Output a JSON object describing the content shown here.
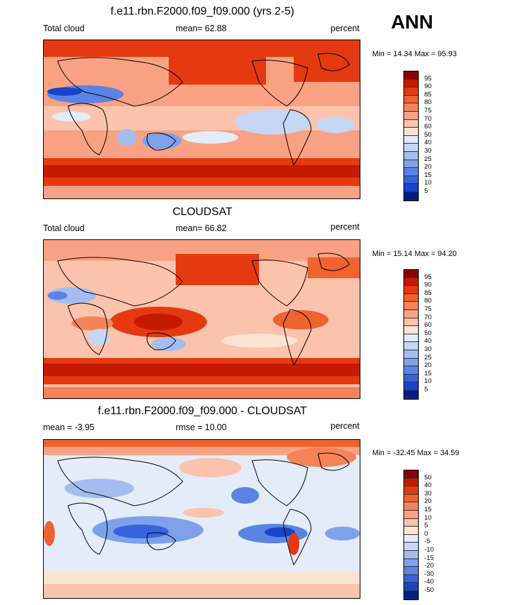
{
  "season": "ANN",
  "panels": [
    {
      "title": "f.e11.rbn.F2000.f09_f09.000 (yrs 2-5)",
      "left_label": "Total cloud",
      "center_label": "mean=  62.88",
      "right_label": "percent",
      "minmax": "Min =  14.34 Max =  95.93"
    },
    {
      "title": "CLOUDSAT",
      "left_label": "Total cloud",
      "center_label": "mean=  66.82",
      "right_label": "percent",
      "minmax": "Min =  15.14 Max =  94.20"
    },
    {
      "title": "f.e11.rbn.F2000.f09_f09.000 - CLOUDSAT",
      "left_label": "mean =  -3.95",
      "center_label": "rmse =  10.00",
      "right_label": "percent",
      "minmax": "Min = -32.45 Max =  34.59"
    }
  ],
  "chart_data": [
    {
      "type": "heatmap",
      "title": "f.e11.rbn.F2000.f09_f09.000 (yrs 2-5)",
      "variable": "Total cloud",
      "units": "percent",
      "mean": 62.88,
      "min": 14.34,
      "max": 95.93,
      "colorbar_levels": [
        95,
        90,
        85,
        80,
        75,
        70,
        60,
        50,
        40,
        30,
        25,
        20,
        15,
        10,
        5
      ],
      "colorbar_colors": [
        "#8b0000",
        "#c41a00",
        "#e53a10",
        "#f0622f",
        "#f5835a",
        "#f9a283",
        "#fbc3ab",
        "#fde3d4",
        "#e4ecfa",
        "#c6d6f5",
        "#a3bdef",
        "#7ea1ea",
        "#5a83e4",
        "#3764de",
        "#1844c9",
        "#001e8a"
      ]
    },
    {
      "type": "heatmap",
      "title": "CLOUDSAT",
      "variable": "Total cloud",
      "units": "percent",
      "mean": 66.82,
      "min": 15.14,
      "max": 94.2,
      "colorbar_levels": [
        95,
        90,
        85,
        80,
        75,
        70,
        60,
        50,
        40,
        30,
        25,
        20,
        15,
        10,
        5
      ],
      "colorbar_colors": [
        "#8b0000",
        "#c41a00",
        "#e53a10",
        "#f0622f",
        "#f5835a",
        "#f9a283",
        "#fbc3ab",
        "#fde3d4",
        "#e4ecfa",
        "#c6d6f5",
        "#a3bdef",
        "#7ea1ea",
        "#5a83e4",
        "#3764de",
        "#1844c9",
        "#001e8a"
      ]
    },
    {
      "type": "heatmap",
      "title": "f.e11.rbn.F2000.f09_f09.000 - CLOUDSAT",
      "units": "percent",
      "mean": -3.95,
      "rmse": 10.0,
      "min": -32.45,
      "max": 34.59,
      "colorbar_levels": [
        50,
        40,
        30,
        20,
        15,
        10,
        5,
        0,
        -5,
        -10,
        -15,
        -20,
        -30,
        -40,
        -50
      ],
      "colorbar_colors": [
        "#8b0000",
        "#c41a00",
        "#e53a10",
        "#f0622f",
        "#f5835a",
        "#f9a283",
        "#fbc3ab",
        "#fde3d4",
        "#e4ecfa",
        "#c6d6f5",
        "#a3bdef",
        "#7ea1ea",
        "#5a83e4",
        "#3764de",
        "#1844c9",
        "#001e8a"
      ]
    }
  ]
}
